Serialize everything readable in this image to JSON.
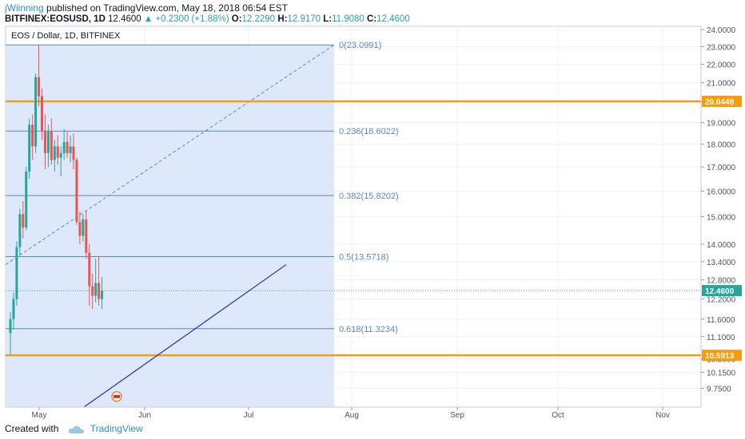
{
  "header": {
    "author": "jWiinning",
    "published_text": "published on TradingView.com, May 18, 2018 06:54 EST",
    "symbol": "BITFINEX:EOSUSD, 1D",
    "last": "12.4600",
    "change": "+0.2300 (+1.88%)",
    "o_label": "O:",
    "o": "12.2290",
    "h_label": "H:",
    "h": "12.9170",
    "l_label": "L:",
    "l": "11.9080",
    "c_label": "C:",
    "c": "12.4600"
  },
  "footer": {
    "created_with": "Created with",
    "brand": "TradingView"
  },
  "colors": {
    "up": "#26a69a",
    "down": "#ef5350",
    "fib": "#5b87c7",
    "orange": "#f59d0e",
    "shade": "#dbe8fb",
    "trend": "#2a2fa8"
  },
  "chart_data": {
    "type": "candlestick",
    "title": "EOS / Dollar, 1D, BITFINEX",
    "y_scale": "log",
    "ylim": [
      9.3,
      24.2
    ],
    "y_ticks": [
      "24.0000",
      "23.0000",
      "22.0000",
      "21.0000",
      "20.0000",
      "19.0000",
      "18.0000",
      "17.0000",
      "16.0000",
      "15.0000",
      "14.0000",
      "13.4000",
      "12.8000",
      "12.2000",
      "11.6000",
      "11.1000",
      "10.5000",
      "10.1500",
      "9.7500"
    ],
    "x_ticks": [
      "May",
      "Jun",
      "Jul",
      "Aug",
      "Sep",
      "Oct",
      "Nov"
    ],
    "last_price": "12.4600",
    "fib_levels": [
      {
        "label": "0(23.0991)",
        "value": 23.0991
      },
      {
        "label": "0.236(18.6022)",
        "value": 18.6022
      },
      {
        "label": "0.382(15.8202)",
        "value": 15.8202
      },
      {
        "label": "0.5(13.5718)",
        "value": 13.5718
      },
      {
        "label": "0.618(11.3234)",
        "value": 11.3234
      }
    ],
    "horizontal_levels": [
      {
        "label": "20.0448",
        "value": 20.0448
      },
      {
        "label": "10.5913",
        "value": 10.5913
      }
    ],
    "candles": [
      [
        11.2,
        11.8,
        10.6,
        11.6
      ],
      [
        11.6,
        12.4,
        11.3,
        12.2
      ],
      [
        12.2,
        14.1,
        12.0,
        13.9
      ],
      [
        13.9,
        15.3,
        13.6,
        15.1
      ],
      [
        15.1,
        15.6,
        14.2,
        14.6
      ],
      [
        14.6,
        17.0,
        14.5,
        16.8
      ],
      [
        16.8,
        19.2,
        16.5,
        18.9
      ],
      [
        18.9,
        19.4,
        17.3,
        17.9
      ],
      [
        17.9,
        21.5,
        17.6,
        21.3
      ],
      [
        21.3,
        23.1,
        19.8,
        20.3
      ],
      [
        20.3,
        20.7,
        18.2,
        18.6
      ],
      [
        18.6,
        19.4,
        16.9,
        17.6
      ],
      [
        17.6,
        18.9,
        17.0,
        18.6
      ],
      [
        18.6,
        19.2,
        17.1,
        17.3
      ],
      [
        17.3,
        18.2,
        16.8,
        17.9
      ],
      [
        17.9,
        18.4,
        17.1,
        17.4
      ],
      [
        17.4,
        17.9,
        16.6,
        17.6
      ],
      [
        17.6,
        18.7,
        17.3,
        18.1
      ],
      [
        18.1,
        18.6,
        17.4,
        17.6
      ],
      [
        17.6,
        18.4,
        17.2,
        17.9
      ],
      [
        17.9,
        18.5,
        16.9,
        17.3
      ],
      [
        17.3,
        17.4,
        14.7,
        14.8
      ],
      [
        14.8,
        15.2,
        14.0,
        14.3
      ],
      [
        14.3,
        15.1,
        14.1,
        14.9
      ],
      [
        14.9,
        15.2,
        13.5,
        13.7
      ],
      [
        13.7,
        14.0,
        12.0,
        12.6
      ],
      [
        12.6,
        13.0,
        11.9,
        12.3
      ],
      [
        12.3,
        13.5,
        12.1,
        12.7
      ],
      [
        12.7,
        13.6,
        12.0,
        12.2
      ],
      [
        12.2,
        12.9,
        11.9,
        12.46
      ]
    ]
  }
}
